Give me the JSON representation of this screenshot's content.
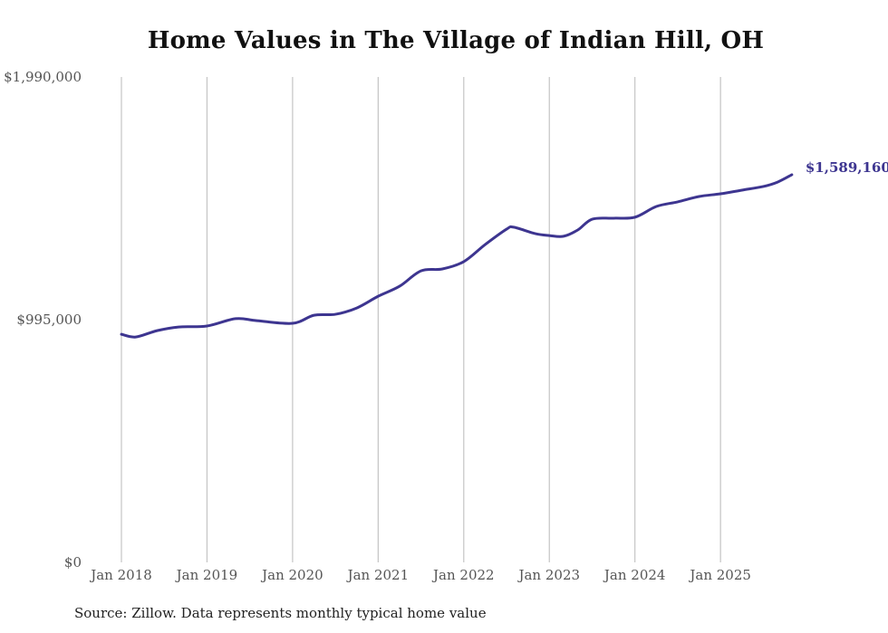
{
  "chart_data": {
    "type": "line",
    "title": "Home Values in The Village of Indian Hill, OH",
    "xlabel": "",
    "ylabel": "",
    "ylim": [
      0,
      1990000
    ],
    "y_ticks": [
      {
        "value": 0,
        "label": "$0"
      },
      {
        "value": 995000,
        "label": "$995,000"
      },
      {
        "value": 1990000,
        "label": "$1,990,000"
      }
    ],
    "x_ticks": [
      {
        "month_index": 0,
        "label": "Jan 2018"
      },
      {
        "month_index": 12,
        "label": "Jan 2019"
      },
      {
        "month_index": 24,
        "label": "Jan 2020"
      },
      {
        "month_index": 36,
        "label": "Jan 2021"
      },
      {
        "month_index": 48,
        "label": "Jan 2022"
      },
      {
        "month_index": 60,
        "label": "Jan 2023"
      },
      {
        "month_index": 72,
        "label": "Jan 2024"
      },
      {
        "month_index": 84,
        "label": "Jan 2025"
      }
    ],
    "x_range_months": [
      0,
      94
    ],
    "grid": {
      "vertical": true,
      "horizontal": false
    },
    "legend": "none",
    "line_color": "#3d3590",
    "series": [
      {
        "name": "Typical home value",
        "points": [
          {
            "x": "2018-01",
            "m": 0,
            "y": 935000
          },
          {
            "x": "2018-03",
            "m": 2,
            "y": 924000
          },
          {
            "x": "2018-06",
            "m": 5,
            "y": 950000
          },
          {
            "x": "2018-09",
            "m": 8,
            "y": 965000
          },
          {
            "x": "2019-01",
            "m": 12,
            "y": 969000
          },
          {
            "x": "2019-05",
            "m": 16,
            "y": 999000
          },
          {
            "x": "2019-08",
            "m": 19,
            "y": 991000
          },
          {
            "x": "2020-01",
            "m": 24,
            "y": 980000
          },
          {
            "x": "2020-04",
            "m": 27,
            "y": 1013000
          },
          {
            "x": "2020-07",
            "m": 30,
            "y": 1017000
          },
          {
            "x": "2020-10",
            "m": 33,
            "y": 1043000
          },
          {
            "x": "2021-01",
            "m": 36,
            "y": 1091000
          },
          {
            "x": "2021-04",
            "m": 39,
            "y": 1132000
          },
          {
            "x": "2021-07",
            "m": 42,
            "y": 1195000
          },
          {
            "x": "2021-10",
            "m": 45,
            "y": 1203000
          },
          {
            "x": "2022-01",
            "m": 48,
            "y": 1233000
          },
          {
            "x": "2022-04",
            "m": 51,
            "y": 1303000
          },
          {
            "x": "2022-07",
            "m": 54,
            "y": 1366000
          },
          {
            "x": "2022-08",
            "m": 55,
            "y": 1374000
          },
          {
            "x": "2022-11",
            "m": 58,
            "y": 1348000
          },
          {
            "x": "2023-01",
            "m": 60,
            "y": 1340000
          },
          {
            "x": "2023-03",
            "m": 62,
            "y": 1337000
          },
          {
            "x": "2023-05",
            "m": 64,
            "y": 1363000
          },
          {
            "x": "2023-07",
            "m": 66,
            "y": 1407000
          },
          {
            "x": "2023-10",
            "m": 69,
            "y": 1411000
          },
          {
            "x": "2024-01",
            "m": 72,
            "y": 1415000
          },
          {
            "x": "2024-04",
            "m": 75,
            "y": 1459000
          },
          {
            "x": "2024-07",
            "m": 78,
            "y": 1478000
          },
          {
            "x": "2024-10",
            "m": 81,
            "y": 1500000
          },
          {
            "x": "2025-01",
            "m": 84,
            "y": 1511000
          },
          {
            "x": "2025-04",
            "m": 87,
            "y": 1526000
          },
          {
            "x": "2025-07",
            "m": 90,
            "y": 1541000
          },
          {
            "x": "2025-09",
            "m": 92,
            "y": 1559000
          },
          {
            "x": "2025-11",
            "m": 94,
            "y": 1589160
          }
        ]
      }
    ],
    "annotations": [
      {
        "text": "$1,589,160",
        "attached_to": "last-point"
      }
    ],
    "source": "Source: Zillow. Data represents monthly typical home value"
  }
}
